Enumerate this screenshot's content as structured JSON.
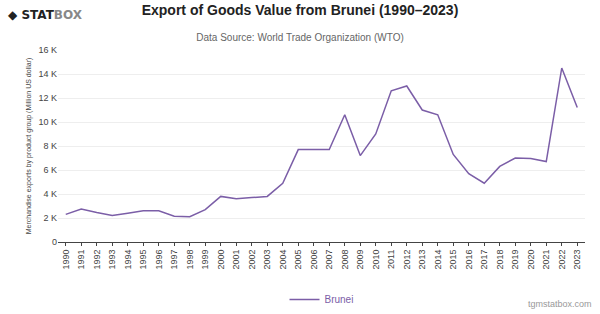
{
  "chart_data": {
    "type": "line",
    "title": "Export of Goods Value from Brunei (1990–2023)",
    "subtitle": "Data Source: World Trade Organization (WTO)",
    "ylabel": "Merchandise exports by product group (Million US dollar)",
    "annotations": [
      "◆",
      "STAT",
      "BOX",
      "tgmstatbox.com"
    ],
    "x": [
      1990,
      1991,
      1992,
      1993,
      1994,
      1995,
      1996,
      1997,
      1998,
      1999,
      2000,
      2001,
      2002,
      2003,
      2004,
      2005,
      2006,
      2007,
      2008,
      2009,
      2010,
      2011,
      2012,
      2013,
      2014,
      2015,
      2016,
      2017,
      2018,
      2019,
      2020,
      2021,
      2022,
      2023
    ],
    "series": [
      {
        "name": "Brunei",
        "color": "#7B5EA7",
        "values": [
          2300,
          2750,
          2450,
          2200,
          2400,
          2600,
          2600,
          2150,
          2100,
          2700,
          3800,
          3600,
          3700,
          3800,
          4900,
          7700,
          7700,
          7700,
          10600,
          7200,
          9000,
          12600,
          13000,
          11000,
          10600,
          7300,
          5700,
          4900,
          6300,
          7000,
          6950,
          6700,
          14500,
          11200
        ]
      }
    ],
    "xlim": [
      1989.5,
      2023.5
    ],
    "xticks": [
      1990,
      1991,
      1992,
      1993,
      1994,
      1995,
      1996,
      1997,
      1998,
      1999,
      2000,
      2001,
      2002,
      2003,
      2004,
      2005,
      2006,
      2007,
      2008,
      2009,
      2010,
      2011,
      2012,
      2013,
      2014,
      2015,
      2016,
      2017,
      2018,
      2019,
      2020,
      2021,
      2022,
      2023
    ],
    "ylim": [
      0,
      16000
    ],
    "yticks": [
      0,
      {
        "value": 2000,
        "label": "2 K"
      },
      {
        "value": 4000,
        "label": "4 K"
      },
      {
        "value": 6000,
        "label": "6 K"
      },
      {
        "value": 8000,
        "label": "8 K"
      },
      {
        "value": 10000,
        "label": "10 K"
      },
      {
        "value": 12000,
        "label": "12 K"
      },
      {
        "value": 14000,
        "label": "14 K"
      },
      {
        "value": 16000,
        "label": "16 K"
      }
    ],
    "grid": true,
    "legend": "bottom"
  }
}
